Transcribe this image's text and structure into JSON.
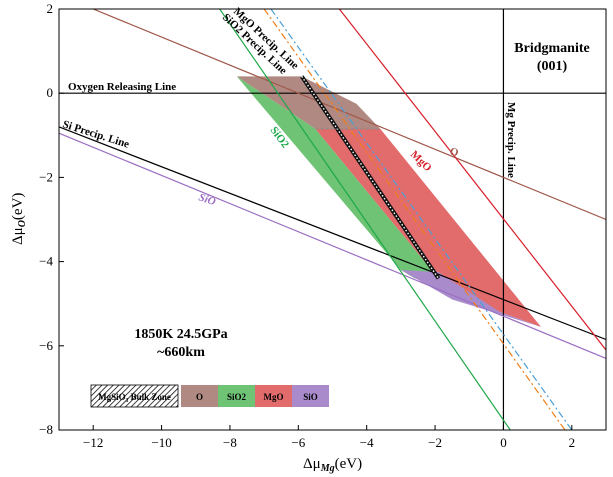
{
  "chart_data": {
    "type": "area",
    "title": "Bridgmanite",
    "subtitle": "(001)",
    "xlabel_main": "Δμ",
    "xlabel_sub": "Mg",
    "xlabel_unit": "(eV)",
    "ylabel_main": "Δμ",
    "ylabel_sub": "O",
    "ylabel_unit": "(eV)",
    "xlim": [
      -13,
      3
    ],
    "ylim": [
      -8,
      2
    ],
    "xticks": [
      -12,
      -10,
      -8,
      -6,
      -4,
      -2,
      0,
      2
    ],
    "yticks": [
      2,
      0,
      -2,
      -4,
      -6,
      -8
    ],
    "condition_line1": "1850K  24.5GPa",
    "condition_line2": "~660km",
    "lines": [
      {
        "key": "o2",
        "label": "Oxygen Releasing Line",
        "color": "#000000",
        "points": [
          [
            -13,
            0
          ],
          [
            3,
            0
          ]
        ]
      },
      {
        "key": "mgp",
        "label": "Mg Precip. Line",
        "color": "#000000",
        "points": [
          [
            0,
            2
          ],
          [
            0,
            -8
          ]
        ]
      },
      {
        "key": "si",
        "label": "Si Precip. Line",
        "color": "#000000",
        "points": [
          [
            -13,
            -0.8
          ],
          [
            3,
            -5.85
          ]
        ]
      },
      {
        "key": "sio",
        "label": "SiO",
        "color": "#9b6fc3",
        "points": [
          [
            -13,
            -0.95
          ],
          [
            3,
            -6.3
          ]
        ]
      },
      {
        "key": "o",
        "label": "O",
        "color": "#a0574a",
        "points": [
          [
            -12,
            2
          ],
          [
            3,
            -3.0
          ]
        ]
      },
      {
        "key": "mgo",
        "label": "MgO",
        "color": "#d81e2a",
        "points": [
          [
            -4.8,
            2
          ],
          [
            3,
            -6.1
          ]
        ]
      },
      {
        "key": "sio2",
        "label": "SiO2",
        "color": "#1ea84a",
        "points": [
          [
            -8.3,
            2
          ],
          [
            0.2,
            -8
          ]
        ]
      },
      {
        "key": "mgop",
        "label": "MgO Precip. Line",
        "color": "#4a9fd5",
        "points": [
          [
            -6.8,
            2
          ],
          [
            2,
            -8
          ]
        ]
      },
      {
        "key": "siop",
        "label": "SiO2 Precip. Line",
        "color": "#f07e1a",
        "points": [
          [
            -7.0,
            2
          ],
          [
            1.8,
            -8
          ]
        ]
      }
    ],
    "regions": [
      {
        "key": "O",
        "label": "O",
        "color": "#b08a82",
        "points": [
          [
            -7.8,
            0.4
          ],
          [
            -5.9,
            0.4
          ],
          [
            -4.3,
            -0.25
          ],
          [
            -3.6,
            -0.85
          ],
          [
            -5.5,
            -0.85
          ]
        ]
      },
      {
        "key": "MgO",
        "label": "MgO",
        "color": "#e26b6c",
        "points": [
          [
            -5.5,
            -0.85
          ],
          [
            -3.6,
            -0.85
          ],
          [
            1.1,
            -5.55
          ],
          [
            -0.1,
            -5.2
          ],
          [
            -1.9,
            -4.4
          ]
        ]
      },
      {
        "key": "SiO2",
        "label": "SiO2",
        "color": "#6ec375",
        "points": [
          [
            -7.8,
            0.4
          ],
          [
            -5.5,
            -0.85
          ],
          [
            -1.9,
            -4.4
          ],
          [
            -2.6,
            -4.4
          ],
          [
            -3.0,
            -4.2
          ]
        ]
      },
      {
        "key": "SiO",
        "label": "SiO",
        "color": "#a98bcc",
        "points": [
          [
            -3.0,
            -4.2
          ],
          [
            -1.9,
            -4.25
          ],
          [
            -0.1,
            -5.2
          ],
          [
            1.1,
            -5.55
          ],
          [
            -1.5,
            -4.9
          ]
        ]
      }
    ],
    "bulk_zone": {
      "label": "MgSiO₃ Bulk Zone",
      "points": [
        [
          -5.9,
          0.4
        ],
        [
          -1.9,
          -4.4
        ]
      ]
    },
    "legend": {
      "placement": "bottom-left",
      "items": [
        {
          "label": "MgSiO₃ Bulk Zone",
          "hatched": true,
          "color": "#ffffff"
        },
        {
          "label": "O",
          "color": "#b08a82"
        },
        {
          "label": "SiO2",
          "color": "#6ec375"
        },
        {
          "label": "MgO",
          "color": "#e26b6c"
        },
        {
          "label": "SiO",
          "color": "#a98bcc"
        }
      ]
    }
  }
}
